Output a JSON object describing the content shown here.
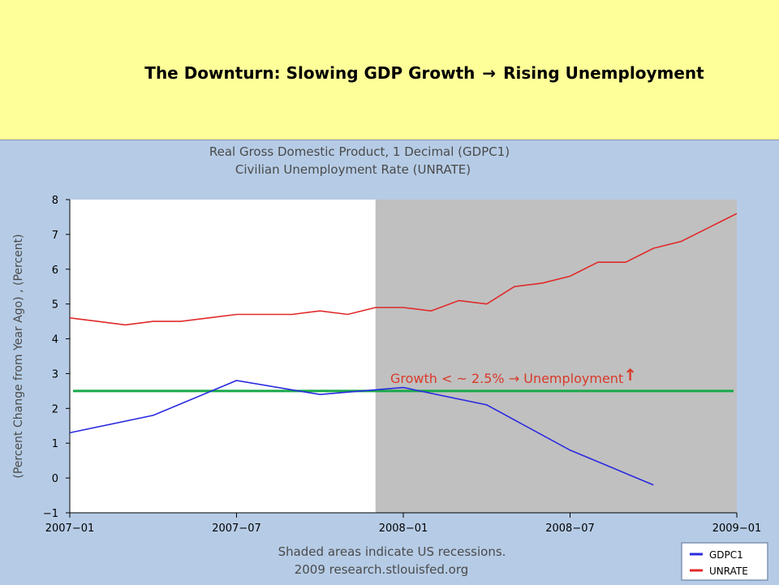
{
  "slide": {
    "title_left": "The Downturn: Slowing GDP Growth",
    "title_arrow": "→",
    "title_right": "Rising Unemployment"
  },
  "chart_header": {
    "line1": "Real Gross Domestic Product, 1 Decimal (GDPC1)",
    "line2": "Civilian Unemployment Rate (UNRATE)"
  },
  "annotation": {
    "text_left": "Growth < ~ 2.5%",
    "arrow": "→",
    "text_right": "Unemployment",
    "up_arrow": "↑",
    "color": "#d83a2a"
  },
  "footer": {
    "line1": "Shaded areas indicate US recessions.",
    "line2": "2009 research.stlouisfed.org"
  },
  "colors": {
    "background": "#ffff99",
    "chart_frame": "#b6cce6",
    "recession_shade": "#c0c0c0",
    "gdp": "#2a2ae0",
    "unrate": "#e02a2a",
    "threshold": "#18a84a"
  },
  "chart_data": {
    "type": "line",
    "ylabel": "(Percent Change from Year Ago) , (Percent)",
    "xlabel": "",
    "ylim": [
      -1,
      8
    ],
    "yticks": [
      -1,
      0,
      1,
      2,
      3,
      4,
      5,
      6,
      7,
      8
    ],
    "x_tick_labels": [
      "2007-01",
      "2007-07",
      "2008-01",
      "2008-07",
      "2009-01"
    ],
    "x_range": [
      "2007-01",
      "2009-01"
    ],
    "recession_start": "2007-12",
    "grid": false,
    "legend_position": "bottom-right",
    "threshold_line": 2.5,
    "series": [
      {
        "name": "GDPC1",
        "color": "#2a2ae0",
        "x": [
          "2007-01",
          "2007-04",
          "2007-07",
          "2007-10",
          "2008-01",
          "2008-04",
          "2008-07",
          "2008-10"
        ],
        "values": [
          1.3,
          1.8,
          2.8,
          2.4,
          2.6,
          2.1,
          0.8,
          -0.2
        ]
      },
      {
        "name": "UNRATE",
        "color": "#e02a2a",
        "x": [
          "2007-01",
          "2007-02",
          "2007-03",
          "2007-04",
          "2007-05",
          "2007-06",
          "2007-07",
          "2007-08",
          "2007-09",
          "2007-10",
          "2007-11",
          "2007-12",
          "2008-01",
          "2008-02",
          "2008-03",
          "2008-04",
          "2008-05",
          "2008-06",
          "2008-07",
          "2008-08",
          "2008-09",
          "2008-10",
          "2008-11",
          "2008-12",
          "2009-01"
        ],
        "values": [
          4.6,
          4.5,
          4.4,
          4.5,
          4.5,
          4.6,
          4.7,
          4.7,
          4.7,
          4.8,
          4.7,
          4.9,
          4.9,
          4.8,
          5.1,
          5.0,
          5.5,
          5.6,
          5.8,
          6.2,
          6.2,
          6.6,
          6.8,
          7.2,
          7.6
        ]
      }
    ]
  }
}
